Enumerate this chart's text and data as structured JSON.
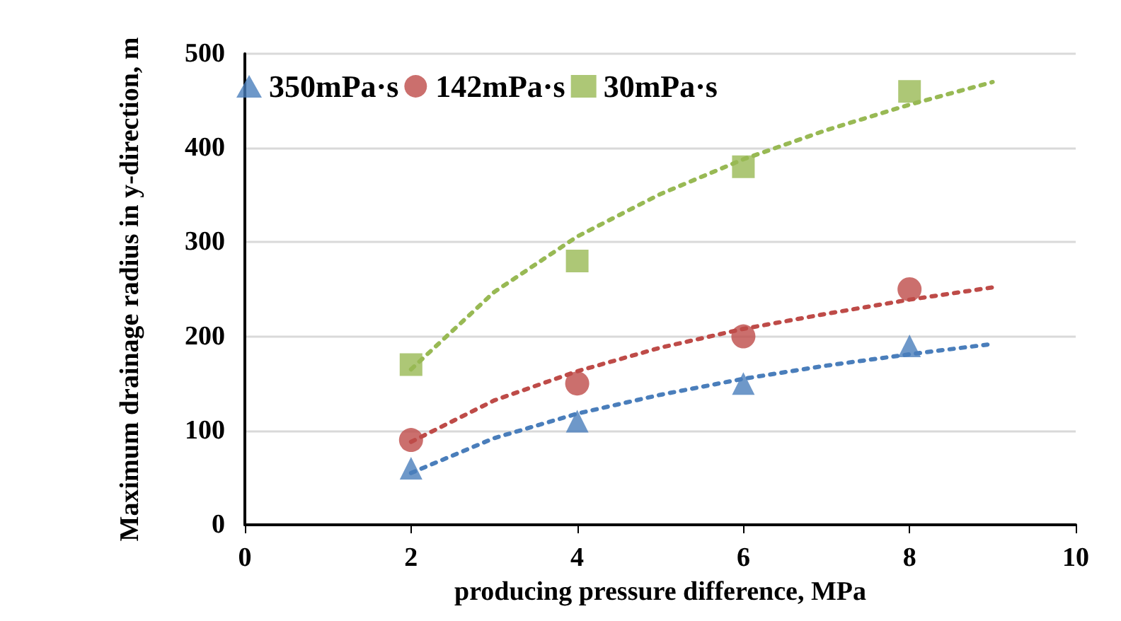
{
  "chart_data": {
    "type": "scatter",
    "xlabel": "producing pressure difference, MPa",
    "ylabel": "Maximum drainage radius in y-direction, m",
    "xlim": [
      0,
      10
    ],
    "xticks": [
      0,
      2,
      4,
      6,
      8,
      10
    ],
    "ylim": [
      0,
      500
    ],
    "yticks": [
      0,
      100,
      200,
      300,
      400,
      500
    ],
    "grid": "y",
    "legend": "top left",
    "series": [
      {
        "name": "350mPa·s",
        "color": "#4a7ebb",
        "marker": "triangle",
        "x": [
          2,
          4,
          6,
          8
        ],
        "values": [
          60,
          110,
          150,
          190
        ]
      },
      {
        "name": "142mPa·s",
        "color": "#be4b48",
        "marker": "circle",
        "x": [
          2,
          4,
          6,
          8
        ],
        "values": [
          90,
          150,
          200,
          250
        ]
      },
      {
        "name": "30mPa·s",
        "color": "#98b954",
        "marker": "square",
        "x": [
          2,
          4,
          6,
          8
        ],
        "values": [
          170,
          280,
          380,
          460
        ]
      },
      {
        "type": "line",
        "color": "#4a7ebb",
        "marker": "none",
        "line_style": "dotted",
        "x": [
          2,
          3,
          4,
          5,
          6,
          7,
          8,
          9
        ],
        "values": [
          55,
          92,
          118,
          138,
          155,
          169,
          181,
          192
        ]
      },
      {
        "type": "line",
        "color": "#be4b48",
        "marker": "none",
        "line_style": "dotted",
        "x": [
          2,
          3,
          4,
          5,
          6,
          7,
          8,
          9
        ],
        "values": [
          88,
          132,
          163,
          188,
          208,
          224,
          239,
          252
        ]
      },
      {
        "type": "line",
        "color": "#98b954",
        "marker": "none",
        "line_style": "dotted",
        "x": [
          2,
          3,
          4,
          5,
          6,
          7,
          8,
          9
        ],
        "values": [
          165,
          247,
          306,
          351,
          388,
          419,
          446,
          470
        ]
      }
    ]
  }
}
